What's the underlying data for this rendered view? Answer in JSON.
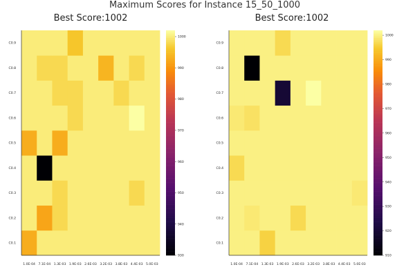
{
  "figure_title": "Maximum Scores for Instance 15_50_1000",
  "chart_data": [
    {
      "type": "heatmap",
      "title": "Best Score:1002",
      "x_categories": [
        "1.0E-04",
        "7.1E-04",
        "1.3E-03",
        "1.9E-03",
        "2.6E-03",
        "3.2E-03",
        "3.8E-03",
        "4.4E-03",
        "5.0E-03"
      ],
      "y_categories": [
        "C0.1",
        "C0.2",
        "C0.3",
        "C0.4",
        "C0.5",
        "C0.6",
        "C0.7",
        "C0.8",
        "C0.9"
      ],
      "values": [
        [
          993,
          1000,
          1000,
          1000,
          1000,
          1000,
          1000,
          1000,
          1000
        ],
        [
          1000,
          992,
          998,
          1000,
          1000,
          1000,
          1000,
          1000,
          1000
        ],
        [
          1000,
          1000,
          998,
          1000,
          1000,
          1000,
          1000,
          998,
          1000
        ],
        [
          1000,
          930,
          1000,
          1000,
          1000,
          1000,
          1000,
          1000,
          1000
        ],
        [
          993,
          1000,
          993,
          1000,
          1000,
          1000,
          1000,
          1000,
          1000
        ],
        [
          1000,
          1000,
          1000,
          998,
          1000,
          1000,
          1000,
          1002,
          1000
        ],
        [
          1000,
          1000,
          998,
          998,
          1000,
          1000,
          998,
          1000,
          1000
        ],
        [
          1000,
          998,
          998,
          1000,
          1000,
          994,
          1000,
          998,
          1000
        ],
        [
          1000,
          1000,
          1000,
          996,
          1000,
          1000,
          1000,
          1000,
          1000
        ]
      ],
      "colorbar": {
        "min": 930,
        "max": 1002,
        "ticks": [
          930,
          940,
          950,
          960,
          970,
          980,
          990,
          1000
        ]
      },
      "grid": false
    },
    {
      "type": "heatmap",
      "title": "Best Score:1002",
      "x_categories": [
        "1.0E-04",
        "7.1E-04",
        "1.3E-03",
        "1.9E-03",
        "2.6E-03",
        "3.2E-03",
        "3.8E-03",
        "4.4E-03",
        "5.0E-03"
      ],
      "y_categories": [
        "C0.1",
        "C0.2",
        "C0.3",
        "C0.4",
        "C0.5",
        "C0.6",
        "C0.7",
        "C0.8",
        "C0.9"
      ],
      "values": [
        [
          1000,
          1000,
          996,
          1000,
          1000,
          1000,
          1000,
          1000,
          1000
        ],
        [
          1000,
          999,
          1000,
          1000,
          997,
          1000,
          1000,
          1000,
          1000
        ],
        [
          1000,
          1000,
          1000,
          1000,
          1000,
          1000,
          1000,
          1000,
          999
        ],
        [
          997,
          1000,
          1000,
          1000,
          1000,
          1000,
          1000,
          1000,
          1000
        ],
        [
          1000,
          1000,
          1000,
          1000,
          1000,
          1000,
          1000,
          1000,
          1000
        ],
        [
          999,
          998,
          1000,
          1000,
          1000,
          1000,
          1000,
          1000,
          1000
        ],
        [
          1000,
          1000,
          1000,
          920,
          1000,
          1002,
          1000,
          1000,
          1000
        ],
        [
          1000,
          910,
          1000,
          1000,
          1000,
          1000,
          1000,
          1000,
          1000
        ],
        [
          1000,
          1000,
          1000,
          997,
          1000,
          1000,
          1000,
          1000,
          1000
        ]
      ],
      "colorbar": {
        "min": 910,
        "max": 1002,
        "ticks": [
          910,
          920,
          930,
          940,
          950,
          960,
          970,
          980,
          990,
          1000
        ]
      },
      "grid": false
    }
  ]
}
